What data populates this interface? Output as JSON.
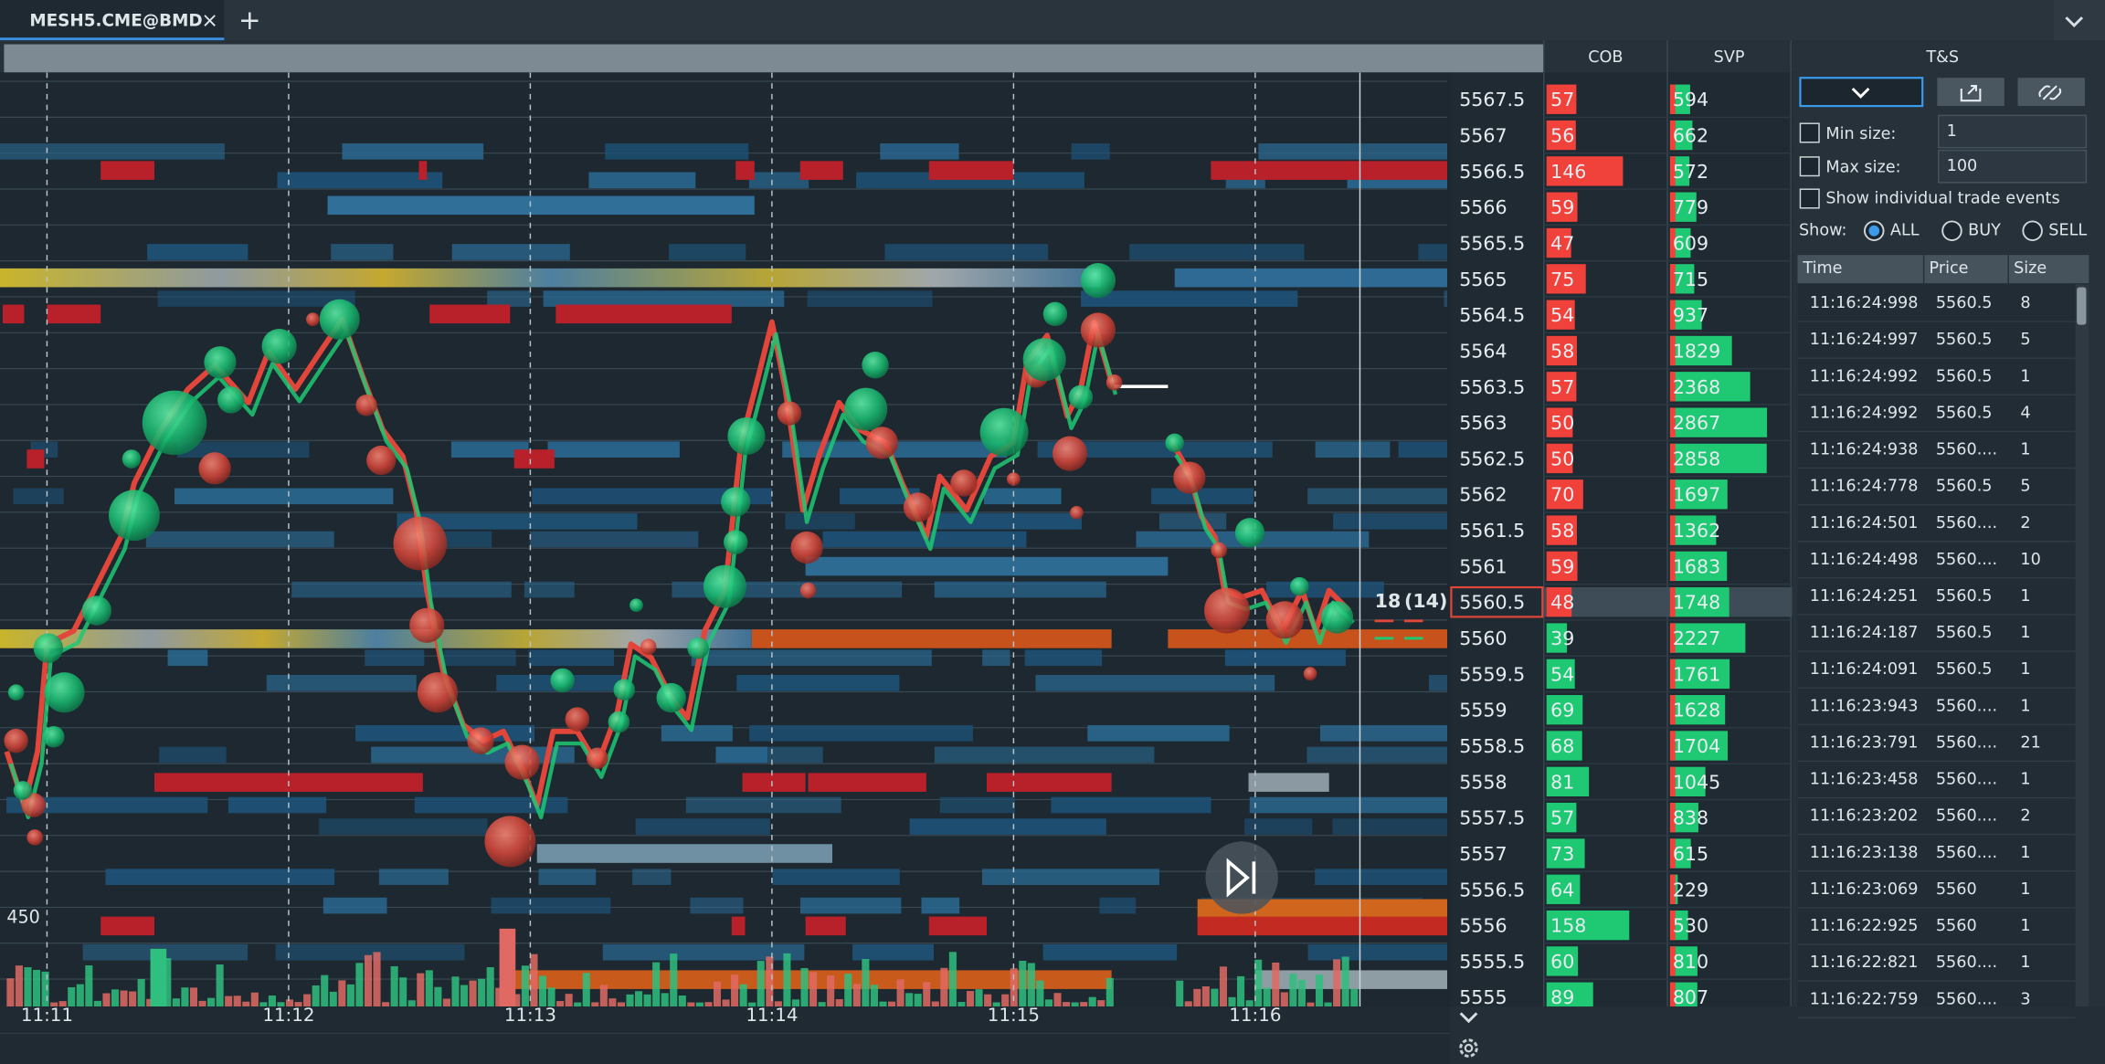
{
  "tab": {
    "title": "MESH5.CME@BMD"
  },
  "ladder": {
    "headers": {
      "cob": "COB",
      "svp": "SVP"
    },
    "rows": [
      {
        "price": 5567.5,
        "cob": 57,
        "svp": 594,
        "side": "ask"
      },
      {
        "price": 5567,
        "cob": 56,
        "svp": 662,
        "side": "ask"
      },
      {
        "price": 5566.5,
        "cob": 146,
        "svp": 572,
        "side": "ask"
      },
      {
        "price": 5566,
        "cob": 59,
        "svp": 779,
        "side": "ask"
      },
      {
        "price": 5565.5,
        "cob": 47,
        "svp": 609,
        "side": "ask"
      },
      {
        "price": 5565,
        "cob": 75,
        "svp": 715,
        "side": "ask"
      },
      {
        "price": 5564.5,
        "cob": 54,
        "svp": 937,
        "side": "ask"
      },
      {
        "price": 5564,
        "cob": 58,
        "svp": 1829,
        "side": "ask"
      },
      {
        "price": 5563.5,
        "cob": 57,
        "svp": 2368,
        "side": "ask"
      },
      {
        "price": 5563,
        "cob": 50,
        "svp": 2867,
        "side": "ask"
      },
      {
        "price": 5562.5,
        "cob": 50,
        "svp": 2858,
        "side": "ask"
      },
      {
        "price": 5562,
        "cob": 70,
        "svp": 1697,
        "side": "ask"
      },
      {
        "price": 5561.5,
        "cob": 58,
        "svp": 1362,
        "side": "ask"
      },
      {
        "price": 5561,
        "cob": 59,
        "svp": 1683,
        "side": "ask"
      },
      {
        "price": 5560.5,
        "cob": 48,
        "svp": 1748,
        "side": "ask",
        "highlight": true
      },
      {
        "price": 5560,
        "cob": 39,
        "svp": 2227,
        "side": "bid"
      },
      {
        "price": 5559.5,
        "cob": 54,
        "svp": 1761,
        "side": "bid"
      },
      {
        "price": 5559,
        "cob": 69,
        "svp": 1628,
        "side": "bid"
      },
      {
        "price": 5558.5,
        "cob": 68,
        "svp": 1704,
        "side": "bid"
      },
      {
        "price": 5558,
        "cob": 81,
        "svp": 1045,
        "side": "bid"
      },
      {
        "price": 5557.5,
        "cob": 57,
        "svp": 838,
        "side": "bid"
      },
      {
        "price": 5557,
        "cob": 73,
        "svp": 615,
        "side": "bid"
      },
      {
        "price": 5556.5,
        "cob": 64,
        "svp": 229,
        "side": "bid"
      },
      {
        "price": 5556,
        "cob": 158,
        "svp": 530,
        "side": "bid"
      },
      {
        "price": 5555.5,
        "cob": 60,
        "svp": 810,
        "side": "bid"
      },
      {
        "price": 5555,
        "cob": 89,
        "svp": 807,
        "side": "bid"
      }
    ],
    "current": {
      "size": 18,
      "pending": "(14)"
    }
  },
  "chart": {
    "time_labels": [
      "11:11",
      "11:12",
      "11:13",
      "11:14",
      "11:15",
      "11:16"
    ],
    "volume_label": "450"
  },
  "ts": {
    "title": "T&S",
    "min_size": {
      "label": "Min size:",
      "placeholder": "1"
    },
    "max_size": {
      "label": "Max size:",
      "placeholder": "100"
    },
    "show_events": "Show individual trade events",
    "show": {
      "label": "Show:",
      "options": [
        "ALL",
        "BUY",
        "SELL"
      ]
    },
    "columns": [
      "Time",
      "Price",
      "Size"
    ],
    "rows": [
      {
        "time": "11:16:24:998",
        "price": "5560.5",
        "size": 8,
        "side": "sell"
      },
      {
        "time": "11:16:24:997",
        "price": "5560.5",
        "size": 5,
        "side": "sell"
      },
      {
        "time": "11:16:24:992",
        "price": "5560.5",
        "size": 1,
        "side": "sell"
      },
      {
        "time": "11:16:24:992",
        "price": "5560.5",
        "size": 4,
        "side": "buy"
      },
      {
        "time": "11:16:24:938",
        "price": "5560....",
        "size": 1,
        "side": "sell"
      },
      {
        "time": "11:16:24:778",
        "price": "5560.5",
        "size": 5,
        "side": "buy"
      },
      {
        "time": "11:16:24:501",
        "price": "5560....",
        "size": 2,
        "side": "buy"
      },
      {
        "time": "11:16:24:498",
        "price": "5560....",
        "size": 10,
        "side": "sell"
      },
      {
        "time": "11:16:24:251",
        "price": "5560.5",
        "size": 1,
        "side": "buy"
      },
      {
        "time": "11:16:24:187",
        "price": "5560.5",
        "size": 1,
        "side": "buy"
      },
      {
        "time": "11:16:24:091",
        "price": "5560.5",
        "size": 1,
        "side": "buy"
      },
      {
        "time": "11:16:23:943",
        "price": "5560....",
        "size": 1,
        "side": "sell"
      },
      {
        "time": "11:16:23:791",
        "price": "5560....",
        "size": 21,
        "side": "buy"
      },
      {
        "time": "11:16:23:458",
        "price": "5560....",
        "size": 1,
        "side": "buy"
      },
      {
        "time": "11:16:23:202",
        "price": "5560....",
        "size": 2,
        "side": "buy"
      },
      {
        "time": "11:16:23:138",
        "price": "5560....",
        "size": 1,
        "side": "buy"
      },
      {
        "time": "11:16:23:069",
        "price": "5560",
        "size": 1,
        "side": "sell"
      },
      {
        "time": "11:16:22:925",
        "price": "5560",
        "size": 1,
        "side": "sell"
      },
      {
        "time": "11:16:22:821",
        "price": "5560....",
        "size": 1,
        "side": "sell"
      },
      {
        "time": "11:16:22:759",
        "price": "5560....",
        "size": 3,
        "side": "buy"
      }
    ]
  }
}
